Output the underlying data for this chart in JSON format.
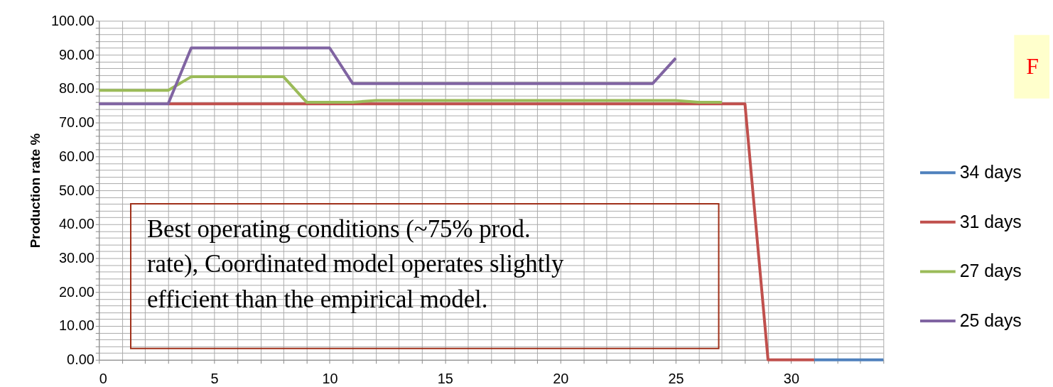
{
  "chart_data": {
    "type": "line",
    "ylabel": "Production rate %",
    "x": [
      0,
      1,
      2,
      3,
      4,
      5,
      6,
      7,
      8,
      9,
      10,
      11,
      12,
      13,
      14,
      15,
      16,
      17,
      18,
      19,
      20,
      21,
      22,
      23,
      24,
      25,
      26,
      27,
      28,
      29,
      30,
      31,
      32,
      33,
      34
    ],
    "series": [
      {
        "name": "34 days",
        "color": "#4f81bd",
        "values": [
          null,
          null,
          null,
          null,
          null,
          null,
          null,
          null,
          null,
          null,
          null,
          null,
          null,
          null,
          null,
          null,
          null,
          null,
          null,
          null,
          null,
          null,
          null,
          null,
          null,
          null,
          null,
          null,
          null,
          null,
          null,
          0,
          0,
          0,
          0
        ]
      },
      {
        "name": "31 days",
        "color": "#c0504d",
        "values": [
          null,
          null,
          null,
          75.5,
          75.5,
          75.5,
          75.5,
          75.5,
          75.5,
          75.5,
          75.5,
          75.5,
          75.5,
          75.5,
          75.5,
          75.5,
          75.5,
          75.5,
          75.5,
          75.5,
          75.5,
          75.5,
          75.5,
          75.5,
          75.5,
          75.5,
          75.5,
          75.5,
          75.5,
          0,
          0,
          0,
          null,
          null,
          null
        ]
      },
      {
        "name": "27 days",
        "color": "#9bbb59",
        "values": [
          79.5,
          79.5,
          79.5,
          79.5,
          83.5,
          83.5,
          83.5,
          83.5,
          83.5,
          76,
          76,
          76,
          76.5,
          76.5,
          76.5,
          76.5,
          76.5,
          76.5,
          76.5,
          76.5,
          76.5,
          76.5,
          76.5,
          76.5,
          76.5,
          76.5,
          76,
          76,
          null,
          null,
          null,
          null,
          null,
          null,
          null
        ]
      },
      {
        "name": "25 days",
        "color": "#8064a2",
        "values": [
          75.5,
          75.5,
          75.5,
          75.5,
          92,
          92,
          92,
          92,
          92,
          92,
          92,
          81.5,
          81.5,
          81.5,
          81.5,
          81.5,
          81.5,
          81.5,
          81.5,
          81.5,
          81.5,
          81.5,
          81.5,
          81.5,
          81.5,
          89,
          null,
          null,
          null,
          null,
          null,
          null,
          null,
          null,
          null
        ]
      }
    ],
    "xlim": [
      0,
      34
    ],
    "xticks": [
      0,
      {
        "value": 1,
        "label": null
      },
      {
        "value": 2,
        "label": null
      },
      {
        "value": 3,
        "label": null
      },
      {
        "value": 4,
        "label": null
      },
      5,
      {
        "value": 6,
        "label": null
      },
      {
        "value": 7,
        "label": null
      },
      {
        "value": 8,
        "label": null
      },
      {
        "value": 9,
        "label": null
      },
      10,
      {
        "value": 11,
        "label": null
      },
      {
        "value": 12,
        "label": null
      },
      {
        "value": 13,
        "label": null
      },
      {
        "value": 14,
        "label": null
      },
      15,
      {
        "value": 16,
        "label": null
      },
      {
        "value": 17,
        "label": null
      },
      {
        "value": 18,
        "label": null
      },
      {
        "value": 19,
        "label": null
      },
      20,
      {
        "value": 21,
        "label": null
      },
      {
        "value": 22,
        "label": null
      },
      {
        "value": 23,
        "label": null
      },
      {
        "value": 24,
        "label": null
      },
      25,
      {
        "value": 26,
        "label": null
      },
      {
        "value": 27,
        "label": null
      },
      {
        "value": 28,
        "label": null
      },
      {
        "value": 29,
        "label": null
      },
      30,
      {
        "value": 31,
        "label": null
      },
      {
        "value": 32,
        "label": null
      },
      {
        "value": 33,
        "label": null
      },
      {
        "value": 34,
        "label": null
      }
    ],
    "ylim": [
      0,
      100
    ],
    "yticks": [
      {
        "value": 0,
        "label": "0.00"
      },
      {
        "value": 2,
        "label": null
      },
      {
        "value": 4,
        "label": null
      },
      {
        "value": 6,
        "label": null
      },
      {
        "value": 8,
        "label": null
      },
      {
        "value": 10,
        "label": "10.00"
      },
      {
        "value": 12,
        "label": null
      },
      {
        "value": 14,
        "label": null
      },
      {
        "value": 16,
        "label": null
      },
      {
        "value": 18,
        "label": null
      },
      {
        "value": 20,
        "label": "20.00"
      },
      {
        "value": 22,
        "label": null
      },
      {
        "value": 24,
        "label": null
      },
      {
        "value": 26,
        "label": null
      },
      {
        "value": 28,
        "label": null
      },
      {
        "value": 30,
        "label": "30.00"
      },
      {
        "value": 32,
        "label": null
      },
      {
        "value": 34,
        "label": null
      },
      {
        "value": 36,
        "label": null
      },
      {
        "value": 38,
        "label": null
      },
      {
        "value": 40,
        "label": "40.00"
      },
      {
        "value": 42,
        "label": null
      },
      {
        "value": 44,
        "label": null
      },
      {
        "value": 46,
        "label": null
      },
      {
        "value": 48,
        "label": null
      },
      {
        "value": 50,
        "label": "50.00"
      },
      {
        "value": 52,
        "label": null
      },
      {
        "value": 54,
        "label": null
      },
      {
        "value": 56,
        "label": null
      },
      {
        "value": 58,
        "label": null
      },
      {
        "value": 60,
        "label": "60.00"
      },
      {
        "value": 62,
        "label": null
      },
      {
        "value": 64,
        "label": null
      },
      {
        "value": 66,
        "label": null
      },
      {
        "value": 68,
        "label": null
      },
      {
        "value": 70,
        "label": "70.00"
      },
      {
        "value": 72,
        "label": null
      },
      {
        "value": 74,
        "label": null
      },
      {
        "value": 76,
        "label": null
      },
      {
        "value": 78,
        "label": null
      },
      {
        "value": 80,
        "label": "80.00"
      },
      {
        "value": 82,
        "label": null
      },
      {
        "value": 84,
        "label": null
      },
      {
        "value": 86,
        "label": null
      },
      {
        "value": 88,
        "label": null
      },
      {
        "value": 90,
        "label": "90.00"
      },
      {
        "value": 92,
        "label": null
      },
      {
        "value": 94,
        "label": null
      },
      {
        "value": 96,
        "label": null
      },
      {
        "value": 98,
        "label": null
      },
      {
        "value": 100,
        "label": "100.00"
      }
    ],
    "grid": true,
    "legend": "right",
    "marker": "none",
    "line_style": "solid",
    "annotations": [
      "Best operating conditions (~75% prod. rate), Coordinated model operates slightly efficient than the empirical model.",
      "F"
    ]
  }
}
